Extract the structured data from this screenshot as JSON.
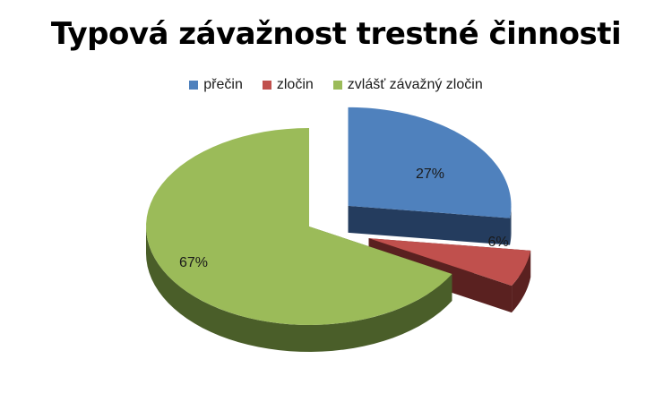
{
  "chart_data": {
    "type": "pie",
    "title": "Typová závažnost trestné činnosti",
    "legend_position": "top",
    "slices": [
      {
        "name": "přečin",
        "value": 27,
        "label": "27%",
        "color": "#4F81BD",
        "side_color": "#243C5E"
      },
      {
        "name": "zločin",
        "value": 6,
        "label": "6%",
        "color": "#C0504D",
        "side_color": "#5A2120"
      },
      {
        "name": "zvlášť závažný zločin",
        "value": 67,
        "label": "67%",
        "color": "#9BBB59",
        "side_color": "#4A5E29"
      }
    ]
  }
}
